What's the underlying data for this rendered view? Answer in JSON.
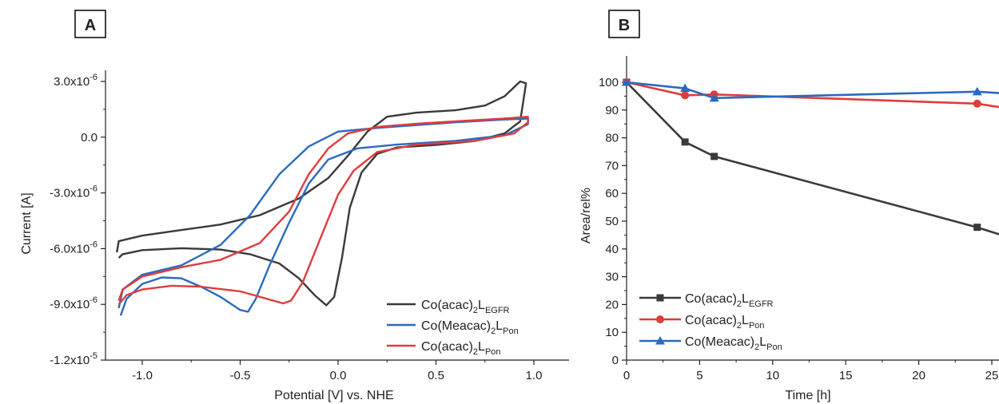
{
  "chart_data": [
    {
      "panel": "A",
      "type": "line",
      "xlabel": "Potential [V] vs. NHE",
      "ylabel": "Current [A]",
      "xlim": [
        -1.2,
        1.2
      ],
      "ylim": [
        -1.2e-05,
        3.7e-06
      ],
      "xticks": [
        -1.0,
        -0.5,
        0.0,
        0.5,
        1.0
      ],
      "xtick_labels": [
        "-1.0",
        "-0.5",
        "0.0",
        "0.5",
        "1.0"
      ],
      "yticks": [
        3e-06,
        0.0,
        -3e-06,
        -6e-06,
        -9e-06,
        -1.2e-05
      ],
      "ytick_labels": [
        {
          "mant": "3.0x10",
          "exp": "-6"
        },
        {
          "mant": "0.0",
          "exp": ""
        },
        {
          "mant": "-3.0x10",
          "exp": "-6"
        },
        {
          "mant": "-6.0x10",
          "exp": "-6"
        },
        {
          "mant": "-9.0x10",
          "exp": "-6"
        },
        {
          "mant": "-1.2x10",
          "exp": "-5"
        }
      ],
      "legend_position": "bottom-right",
      "series": [
        {
          "name": "Co(acac)2LEGFR",
          "label_main": "Co(acac)",
          "label_sub1": "2",
          "label_l": "L",
          "label_sub2": "EGFR",
          "color": "#3a3a3a",
          "points": [
            [
              -1.12,
              -6.5e-06
            ],
            [
              -1.1,
              -6.3e-06
            ],
            [
              -1.0,
              -6.08e-06
            ],
            [
              -0.8,
              -5.98e-06
            ],
            [
              -0.6,
              -6.05e-06
            ],
            [
              -0.45,
              -6.3e-06
            ],
            [
              -0.3,
              -6.8e-06
            ],
            [
              -0.2,
              -7.6e-06
            ],
            [
              -0.12,
              -8.5e-06
            ],
            [
              -0.06,
              -9.05e-06
            ],
            [
              -0.02,
              -8.6e-06
            ],
            [
              0.02,
              -6.5e-06
            ],
            [
              0.06,
              -3.8e-06
            ],
            [
              0.12,
              -1.9e-06
            ],
            [
              0.2,
              -9e-07
            ],
            [
              0.3,
              -5.5e-07
            ],
            [
              0.5,
              -4.2e-07
            ],
            [
              0.7,
              -2e-07
            ],
            [
              0.85,
              2e-07
            ],
            [
              0.93,
              8.5e-07
            ],
            [
              0.96,
              2.9e-06
            ],
            [
              0.93,
              3e-06
            ],
            [
              0.85,
              2.2e-06
            ],
            [
              0.75,
              1.7e-06
            ],
            [
              0.6,
              1.45e-06
            ],
            [
              0.4,
              1.32e-06
            ],
            [
              0.25,
              1.1e-06
            ],
            [
              0.15,
              3e-07
            ],
            [
              0.05,
              -1e-06
            ],
            [
              -0.05,
              -2.2e-06
            ],
            [
              -0.2,
              -3.3e-06
            ],
            [
              -0.4,
              -4.2e-06
            ],
            [
              -0.6,
              -4.7e-06
            ],
            [
              -0.8,
              -5e-06
            ],
            [
              -1.0,
              -5.3e-06
            ],
            [
              -1.12,
              -5.6e-06
            ],
            [
              -1.13,
              -6.2e-06
            ]
          ]
        },
        {
          "name": "Co(Meacac)2LPon",
          "label_main": "Co(Meacac)",
          "label_sub1": "2",
          "label_l": "L",
          "label_sub2": "Pon",
          "color": "#2a6bbf",
          "points": [
            [
              -1.11,
              -9.6e-06
            ],
            [
              -1.08,
              -8.7e-06
            ],
            [
              -1.0,
              -7.9e-06
            ],
            [
              -0.9,
              -7.55e-06
            ],
            [
              -0.8,
              -7.6e-06
            ],
            [
              -0.7,
              -8.05e-06
            ],
            [
              -0.6,
              -8.6e-06
            ],
            [
              -0.5,
              -9.3e-06
            ],
            [
              -0.46,
              -9.4e-06
            ],
            [
              -0.42,
              -8.7e-06
            ],
            [
              -0.35,
              -6.9e-06
            ],
            [
              -0.25,
              -4.6e-06
            ],
            [
              -0.15,
              -2.5e-06
            ],
            [
              -0.05,
              -1.2e-06
            ],
            [
              0.1,
              -6e-07
            ],
            [
              0.3,
              -4e-07
            ],
            [
              0.6,
              -2e-07
            ],
            [
              0.85,
              1e-07
            ],
            [
              0.97,
              7e-07
            ],
            [
              0.97,
              1e-06
            ],
            [
              0.85,
              9.5e-07
            ],
            [
              0.6,
              8e-07
            ],
            [
              0.4,
              6.5e-07
            ],
            [
              0.2,
              5e-07
            ],
            [
              0.0,
              3e-07
            ],
            [
              -0.15,
              -5e-07
            ],
            [
              -0.3,
              -2e-06
            ],
            [
              -0.45,
              -4.2e-06
            ],
            [
              -0.6,
              -5.8e-06
            ],
            [
              -0.8,
              -6.9e-06
            ],
            [
              -1.0,
              -7.4e-06
            ],
            [
              -1.1,
              -8.2e-06
            ],
            [
              -1.12,
              -9.2e-06
            ]
          ]
        },
        {
          "name": "Co(acac)2LPon",
          "label_main": "Co(acac)",
          "label_sub1": "2",
          "label_l": "L",
          "label_sub2": "Pon",
          "color": "#e03c3c",
          "points": [
            [
              -1.12,
              -9e-06
            ],
            [
              -1.08,
              -8.5e-06
            ],
            [
              -1.0,
              -8.2e-06
            ],
            [
              -0.85,
              -8e-06
            ],
            [
              -0.7,
              -8.05e-06
            ],
            [
              -0.5,
              -8.3e-06
            ],
            [
              -0.38,
              -8.65e-06
            ],
            [
              -0.28,
              -8.95e-06
            ],
            [
              -0.24,
              -8.8e-06
            ],
            [
              -0.18,
              -7.8e-06
            ],
            [
              -0.1,
              -5.7e-06
            ],
            [
              0.0,
              -3.1e-06
            ],
            [
              0.08,
              -1.8e-06
            ],
            [
              0.2,
              -8e-07
            ],
            [
              0.4,
              -4e-07
            ],
            [
              0.7,
              -2e-07
            ],
            [
              0.9,
              2e-07
            ],
            [
              0.97,
              8e-07
            ],
            [
              0.97,
              1.1e-06
            ],
            [
              0.85,
              1e-06
            ],
            [
              0.6,
              8.5e-07
            ],
            [
              0.4,
              7.2e-07
            ],
            [
              0.2,
              5.5e-07
            ],
            [
              0.05,
              2e-07
            ],
            [
              -0.05,
              -6e-07
            ],
            [
              -0.15,
              -2e-06
            ],
            [
              -0.25,
              -4e-06
            ],
            [
              -0.4,
              -5.7e-06
            ],
            [
              -0.6,
              -6.6e-06
            ],
            [
              -0.8,
              -7e-06
            ],
            [
              -1.0,
              -7.5e-06
            ],
            [
              -1.1,
              -8.2e-06
            ],
            [
              -1.12,
              -8.8e-06
            ]
          ]
        }
      ]
    },
    {
      "panel": "B",
      "type": "line",
      "xlabel": "Time [h]",
      "ylabel": "Area/rel%",
      "xlim": [
        0,
        25.5
      ],
      "ylim": [
        0,
        100
      ],
      "xticks": [
        0,
        5,
        10,
        15,
        20,
        25
      ],
      "xtick_labels": [
        "0",
        "5",
        "10",
        "15",
        "20",
        "25"
      ],
      "yticks": [
        0,
        10,
        20,
        30,
        40,
        50,
        60,
        70,
        80,
        90,
        100
      ],
      "ytick_labels": [
        "0",
        "10",
        "20",
        "30",
        "40",
        "50",
        "60",
        "70",
        "80",
        "90",
        "100"
      ],
      "legend_position": "bottom-left",
      "series": [
        {
          "name": "Co(acac)2LEGFR",
          "label_main": "Co(acac)",
          "label_sub1": "2",
          "label_l": "L",
          "label_sub2": "EGFR",
          "color": "#3a3a3a",
          "marker": "square",
          "x": [
            0,
            4,
            6,
            24
          ],
          "y": [
            100,
            78.5,
            73.3,
            47.8
          ],
          "tail": [
            25.8,
            44.8
          ]
        },
        {
          "name": "Co(acac)2LPon",
          "label_main": "Co(acac)",
          "label_sub1": "2",
          "label_l": "L",
          "label_sub2": "Pon",
          "color": "#e03c3c",
          "marker": "circle",
          "x": [
            0,
            4,
            6,
            24
          ],
          "y": [
            100,
            95.3,
            95.6,
            92.3
          ],
          "tail": [
            25.8,
            90.8
          ]
        },
        {
          "name": "Co(Meacac)2LPon",
          "label_main": "Co(Meacac)",
          "label_sub1": "2",
          "label_l": "L",
          "label_sub2": "Pon",
          "color": "#2a6bbf",
          "marker": "triangle",
          "x": [
            0,
            4,
            6,
            24
          ],
          "y": [
            100,
            97.8,
            94.3,
            96.6
          ],
          "tail": [
            25.8,
            96.0
          ]
        }
      ]
    }
  ]
}
